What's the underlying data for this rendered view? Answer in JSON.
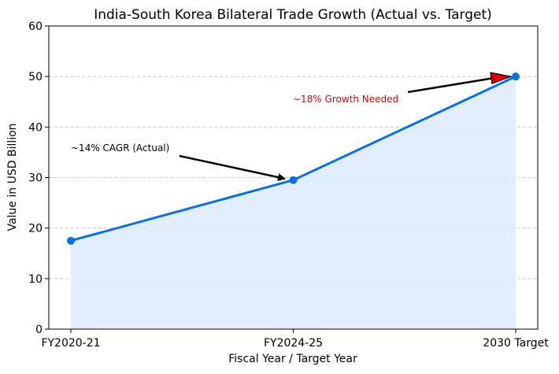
{
  "chart_data": {
    "type": "area",
    "title": "India-South Korea Bilateral Trade Growth (Actual vs. Target)",
    "xlabel": "Fiscal Year / Target Year",
    "ylabel": "Value in USD Billion",
    "categories": [
      "FY2020-21",
      "FY2024-25",
      "2030 Target"
    ],
    "values": [
      17.5,
      29.5,
      50
    ],
    "ylim": [
      0,
      60
    ],
    "yticks": [
      0,
      10,
      20,
      30,
      40,
      50,
      60
    ],
    "grid": "horizontal dashed",
    "annotations": [
      {
        "text": "~14% CAGR (Actual)",
        "points_to_category": "FY2024-25",
        "color": "#000000"
      },
      {
        "text": "~18% Growth Needed",
        "points_to_category": "2030 Target",
        "color": "#e00000"
      }
    ],
    "colors": {
      "line": "#0a6fdf",
      "fill": "#dceafa",
      "grid": "#c0c0c0",
      "arrow_red": "#e00000"
    }
  }
}
